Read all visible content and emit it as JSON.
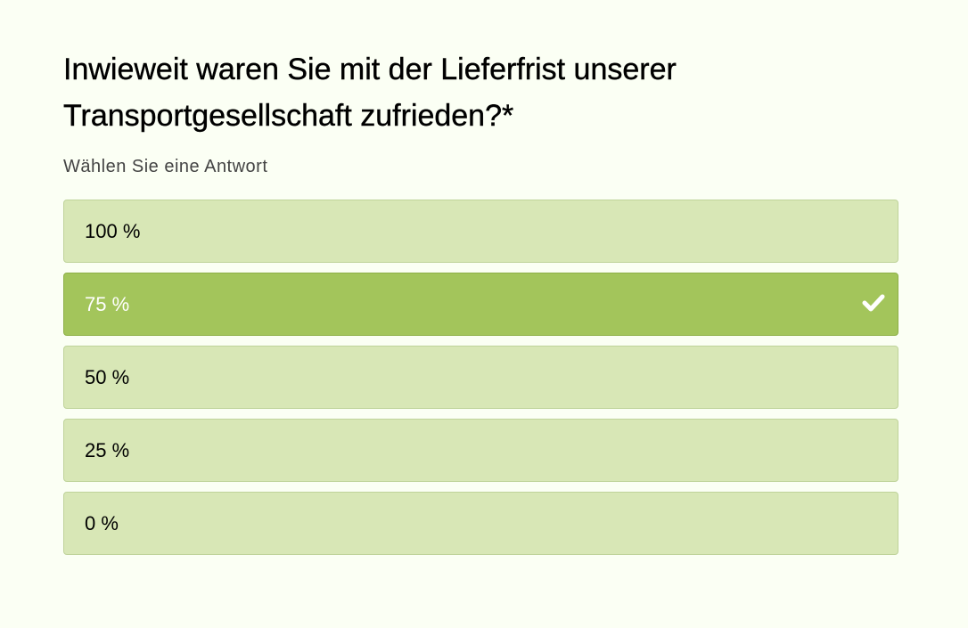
{
  "question": {
    "title": "Inwieweit waren Sie mit der Lieferfrist unserer Transportgesellschaft zufrieden?*",
    "subtitle": "Wählen Sie eine Antwort"
  },
  "options": [
    {
      "label": "100 %",
      "selected": false
    },
    {
      "label": "75 %",
      "selected": true
    },
    {
      "label": "50 %",
      "selected": false
    },
    {
      "label": "25 %",
      "selected": false
    },
    {
      "label": "0 %",
      "selected": false
    }
  ],
  "colors": {
    "option_bg": "#d8e7b6",
    "selected_bg": "#a3c55b",
    "page_bg": "#fbfff4"
  }
}
